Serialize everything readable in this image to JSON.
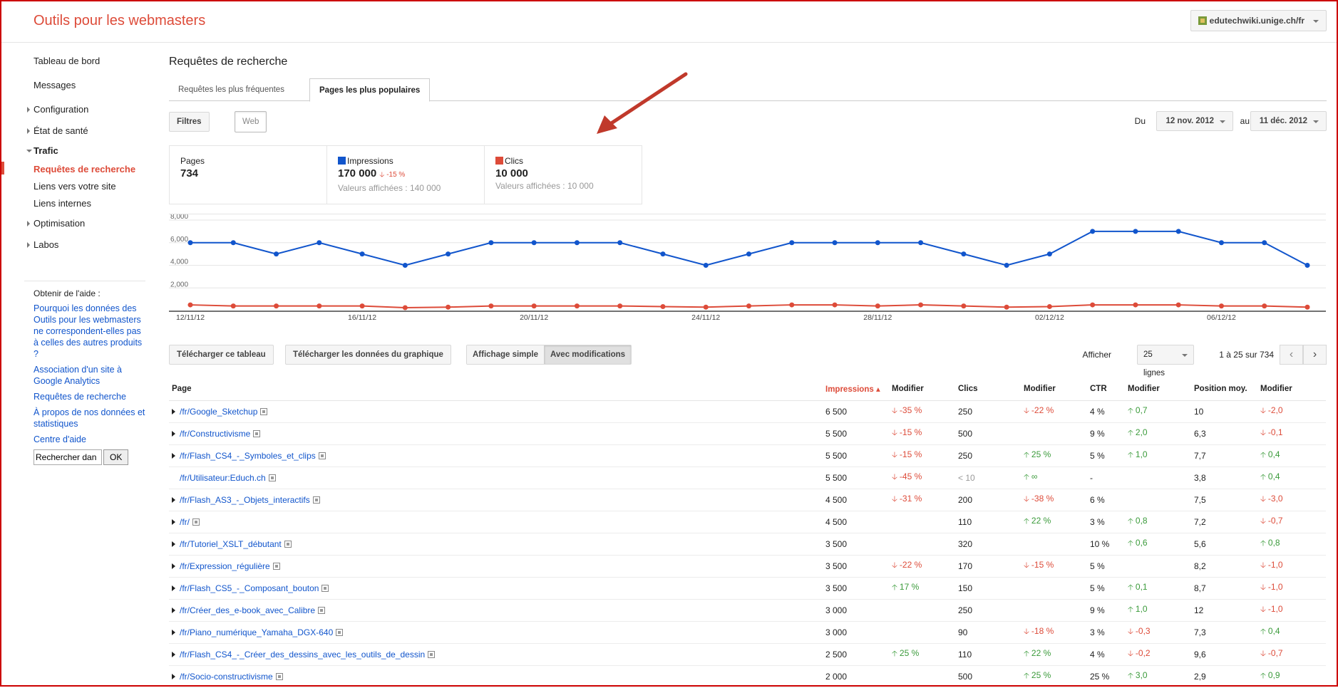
{
  "header": {
    "app_title": "Outils pour les webmasters",
    "site": "edutechwiki.unige.ch/fr"
  },
  "sidebar": {
    "items": [
      {
        "label": "Tableau de bord",
        "expandable": false
      },
      {
        "label": "Messages",
        "expandable": false
      },
      {
        "label": "Configuration",
        "expandable": true
      },
      {
        "label": "État de santé",
        "expandable": true
      },
      {
        "label": "Trafic",
        "expandable": true,
        "open": true
      },
      {
        "label": "Optimisation",
        "expandable": true
      },
      {
        "label": "Labos",
        "expandable": true
      }
    ],
    "trafic_sub": [
      "Requêtes de recherche",
      "Liens vers votre site",
      "Liens internes"
    ],
    "help_title": "Obtenir de l'aide :",
    "help_links": [
      "Pourquoi les données des Outils pour les webmasters ne correspondent-elles pas à celles des autres produits ?",
      "Association d'un site à Google Analytics",
      "Requêtes de recherche",
      "À propos de nos données et statistiques",
      "Centre d'aide"
    ],
    "search_value": "Rechercher dan",
    "search_button": "OK"
  },
  "main": {
    "title": "Requêtes de recherche",
    "tabs": [
      "Requêtes les plus fréquentes",
      "Pages les plus populaires"
    ],
    "filters_btn": "Filtres",
    "web_btn": "Web",
    "date_from_label": "Du",
    "date_from": "12 nov. 2012",
    "date_to_label": "au",
    "date_to": "11 déc. 2012"
  },
  "metrics": {
    "pages_label": "Pages",
    "pages_value": "734",
    "impr_label": "Impressions",
    "impr_value": "170 000",
    "impr_delta": "-15 %",
    "impr_sub": "Valeurs affichées : 140 000",
    "clics_label": "Clics",
    "clics_value": "10 000",
    "clics_sub": "Valeurs affichées : 10 000"
  },
  "colors": {
    "impressions": "#1155cc",
    "clics": "#dd4b39",
    "accent": "#dd4b39",
    "link": "#1155cc",
    "positive": "#3a9a3a"
  },
  "chart_data": {
    "type": "line",
    "x": [
      "12/11/12",
      "13/11/12",
      "14/11/12",
      "15/11/12",
      "16/11/12",
      "17/11/12",
      "18/11/12",
      "19/11/12",
      "20/11/12",
      "21/11/12",
      "22/11/12",
      "23/11/12",
      "24/11/12",
      "25/11/12",
      "26/11/12",
      "27/11/12",
      "28/11/12",
      "29/11/12",
      "30/11/12",
      "01/12/12",
      "02/12/12",
      "03/12/12",
      "04/12/12",
      "05/12/12",
      "06/12/12",
      "07/12/12",
      "08/12/12"
    ],
    "x_tick_labels": [
      "12/11/12",
      "16/11/12",
      "20/11/12",
      "24/11/12",
      "28/11/12",
      "02/12/12",
      "06/12/12"
    ],
    "y_tick_labels": [
      "2,000",
      "4,000",
      "6,000",
      "8,000"
    ],
    "ylim": [
      0,
      8000
    ],
    "series": [
      {
        "name": "Impressions",
        "color": "#1155cc",
        "values": [
          6000,
          6000,
          5000,
          6000,
          5000,
          4000,
          5000,
          6000,
          6000,
          6000,
          6000,
          5000,
          4000,
          5000,
          6000,
          6000,
          6000,
          6000,
          5000,
          4000,
          5000,
          7000,
          7000,
          7000,
          6000,
          6000,
          4000
        ]
      },
      {
        "name": "Clics",
        "color": "#dd4b39",
        "values": [
          500,
          400,
          400,
          400,
          400,
          250,
          300,
          400,
          400,
          400,
          400,
          350,
          300,
          400,
          500,
          500,
          400,
          500,
          400,
          300,
          350,
          500,
          500,
          500,
          400,
          400,
          300
        ]
      }
    ],
    "grid": true
  },
  "toolbar": {
    "download_table": "Télécharger ce tableau",
    "download_chart": "Télécharger les données du graphique",
    "view_simple": "Affichage simple",
    "view_changes": "Avec modifications",
    "show_label": "Afficher",
    "rows_value": "25 lignes",
    "range": "1 à 25 sur 734"
  },
  "table": {
    "headers": [
      "Page",
      "Impressions ▴",
      "Modifier",
      "Clics",
      "Modifier",
      "CTR",
      "Modifier",
      "Position moy.",
      "Modifier"
    ],
    "rows": [
      {
        "page": "/fr/Google_Sketchup",
        "exp": true,
        "impr": "6 500",
        "impr_mod": "-35 %",
        "impr_dir": "neg",
        "clics": "250",
        "clics_mod": "-22 %",
        "clics_dir": "neg",
        "ctr": "4 %",
        "ctr_mod": "0,7",
        "ctr_dir": "pos",
        "pos": "10",
        "pos_mod": "-2,0",
        "pos_dir": "neg"
      },
      {
        "page": "/fr/Constructivisme",
        "exp": true,
        "impr": "5 500",
        "impr_mod": "-15 %",
        "impr_dir": "neg",
        "clics": "500",
        "clics_mod": "",
        "clics_dir": "",
        "ctr": "9 %",
        "ctr_mod": "2,0",
        "ctr_dir": "pos",
        "pos": "6,3",
        "pos_mod": "-0,1",
        "pos_dir": "neg"
      },
      {
        "page": "/fr/Flash_CS4_-_Symboles_et_clips",
        "exp": true,
        "impr": "5 500",
        "impr_mod": "-15 %",
        "impr_dir": "neg",
        "clics": "250",
        "clics_mod": "25 %",
        "clics_dir": "pos",
        "ctr": "5 %",
        "ctr_mod": "1,0",
        "ctr_dir": "pos",
        "pos": "7,7",
        "pos_mod": "0,4",
        "pos_dir": "pos"
      },
      {
        "page": "/fr/Utilisateur:Educh.ch",
        "exp": false,
        "impr": "5 500",
        "impr_mod": "-45 %",
        "impr_dir": "neg",
        "clics": "< 10",
        "clics_grey": true,
        "clics_mod": "∞",
        "clics_dir": "pos",
        "ctr": "-",
        "ctr_mod": "",
        "ctr_dir": "",
        "pos": "3,8",
        "pos_mod": "0,4",
        "pos_dir": "pos"
      },
      {
        "page": "/fr/Flash_AS3_-_Objets_interactifs",
        "exp": true,
        "impr": "4 500",
        "impr_mod": "-31 %",
        "impr_dir": "neg",
        "clics": "200",
        "clics_mod": "-38 %",
        "clics_dir": "neg",
        "ctr": "6 %",
        "ctr_mod": "",
        "ctr_dir": "",
        "pos": "7,5",
        "pos_mod": "-3,0",
        "pos_dir": "neg"
      },
      {
        "page": "/fr/",
        "exp": true,
        "impr": "4 500",
        "impr_mod": "",
        "impr_dir": "",
        "clics": "110",
        "clics_mod": "22 %",
        "clics_dir": "pos",
        "ctr": "3 %",
        "ctr_mod": "0,8",
        "ctr_dir": "pos",
        "pos": "7,2",
        "pos_mod": "-0,7",
        "pos_dir": "neg"
      },
      {
        "page": "/fr/Tutoriel_XSLT_débutant",
        "exp": true,
        "impr": "3 500",
        "impr_mod": "",
        "impr_dir": "",
        "clics": "320",
        "clics_mod": "",
        "clics_dir": "",
        "ctr": "10 %",
        "ctr_mod": "0,6",
        "ctr_dir": "pos",
        "pos": "5,6",
        "pos_mod": "0,8",
        "pos_dir": "pos"
      },
      {
        "page": "/fr/Expression_régulière",
        "exp": true,
        "impr": "3 500",
        "impr_mod": "-22 %",
        "impr_dir": "neg",
        "clics": "170",
        "clics_mod": "-15 %",
        "clics_dir": "neg",
        "ctr": "5 %",
        "ctr_mod": "",
        "ctr_dir": "",
        "pos": "8,2",
        "pos_mod": "-1,0",
        "pos_dir": "neg"
      },
      {
        "page": "/fr/Flash_CS5_-_Composant_bouton",
        "exp": true,
        "impr": "3 500",
        "impr_mod": "17 %",
        "impr_dir": "pos",
        "clics": "150",
        "clics_mod": "",
        "clics_dir": "",
        "ctr": "5 %",
        "ctr_mod": "0,1",
        "ctr_dir": "pos",
        "pos": "8,7",
        "pos_mod": "-1,0",
        "pos_dir": "neg"
      },
      {
        "page": "/fr/Créer_des_e-book_avec_Calibre",
        "exp": true,
        "impr": "3 000",
        "impr_mod": "",
        "impr_dir": "",
        "clics": "250",
        "clics_mod": "",
        "clics_dir": "",
        "ctr": "9 %",
        "ctr_mod": "1,0",
        "ctr_dir": "pos",
        "pos": "12",
        "pos_mod": "-1,0",
        "pos_dir": "neg"
      },
      {
        "page": "/fr/Piano_numérique_Yamaha_DGX-640",
        "exp": true,
        "impr": "3 000",
        "impr_mod": "",
        "impr_dir": "",
        "clics": "90",
        "clics_mod": "-18 %",
        "clics_dir": "neg",
        "ctr": "3 %",
        "ctr_mod": "-0,3",
        "ctr_dir": "neg",
        "pos": "7,3",
        "pos_mod": "0,4",
        "pos_dir": "pos"
      },
      {
        "page": "/fr/Flash_CS4_-_Créer_des_dessins_avec_les_outils_de_dessin",
        "exp": true,
        "impr": "2 500",
        "impr_mod": "25 %",
        "impr_dir": "pos",
        "clics": "110",
        "clics_mod": "22 %",
        "clics_dir": "pos",
        "ctr": "4 %",
        "ctr_mod": "-0,2",
        "ctr_dir": "neg",
        "pos": "9,6",
        "pos_mod": "-0,7",
        "pos_dir": "neg"
      },
      {
        "page": "/fr/Socio-constructivisme",
        "exp": true,
        "impr": "2 000",
        "impr_mod": "",
        "impr_dir": "",
        "clics": "500",
        "clics_mod": "25 %",
        "clics_dir": "pos",
        "ctr": "25 %",
        "ctr_mod": "3,0",
        "ctr_dir": "pos",
        "pos": "2,9",
        "pos_mod": "0,9",
        "pos_dir": "pos"
      }
    ]
  }
}
